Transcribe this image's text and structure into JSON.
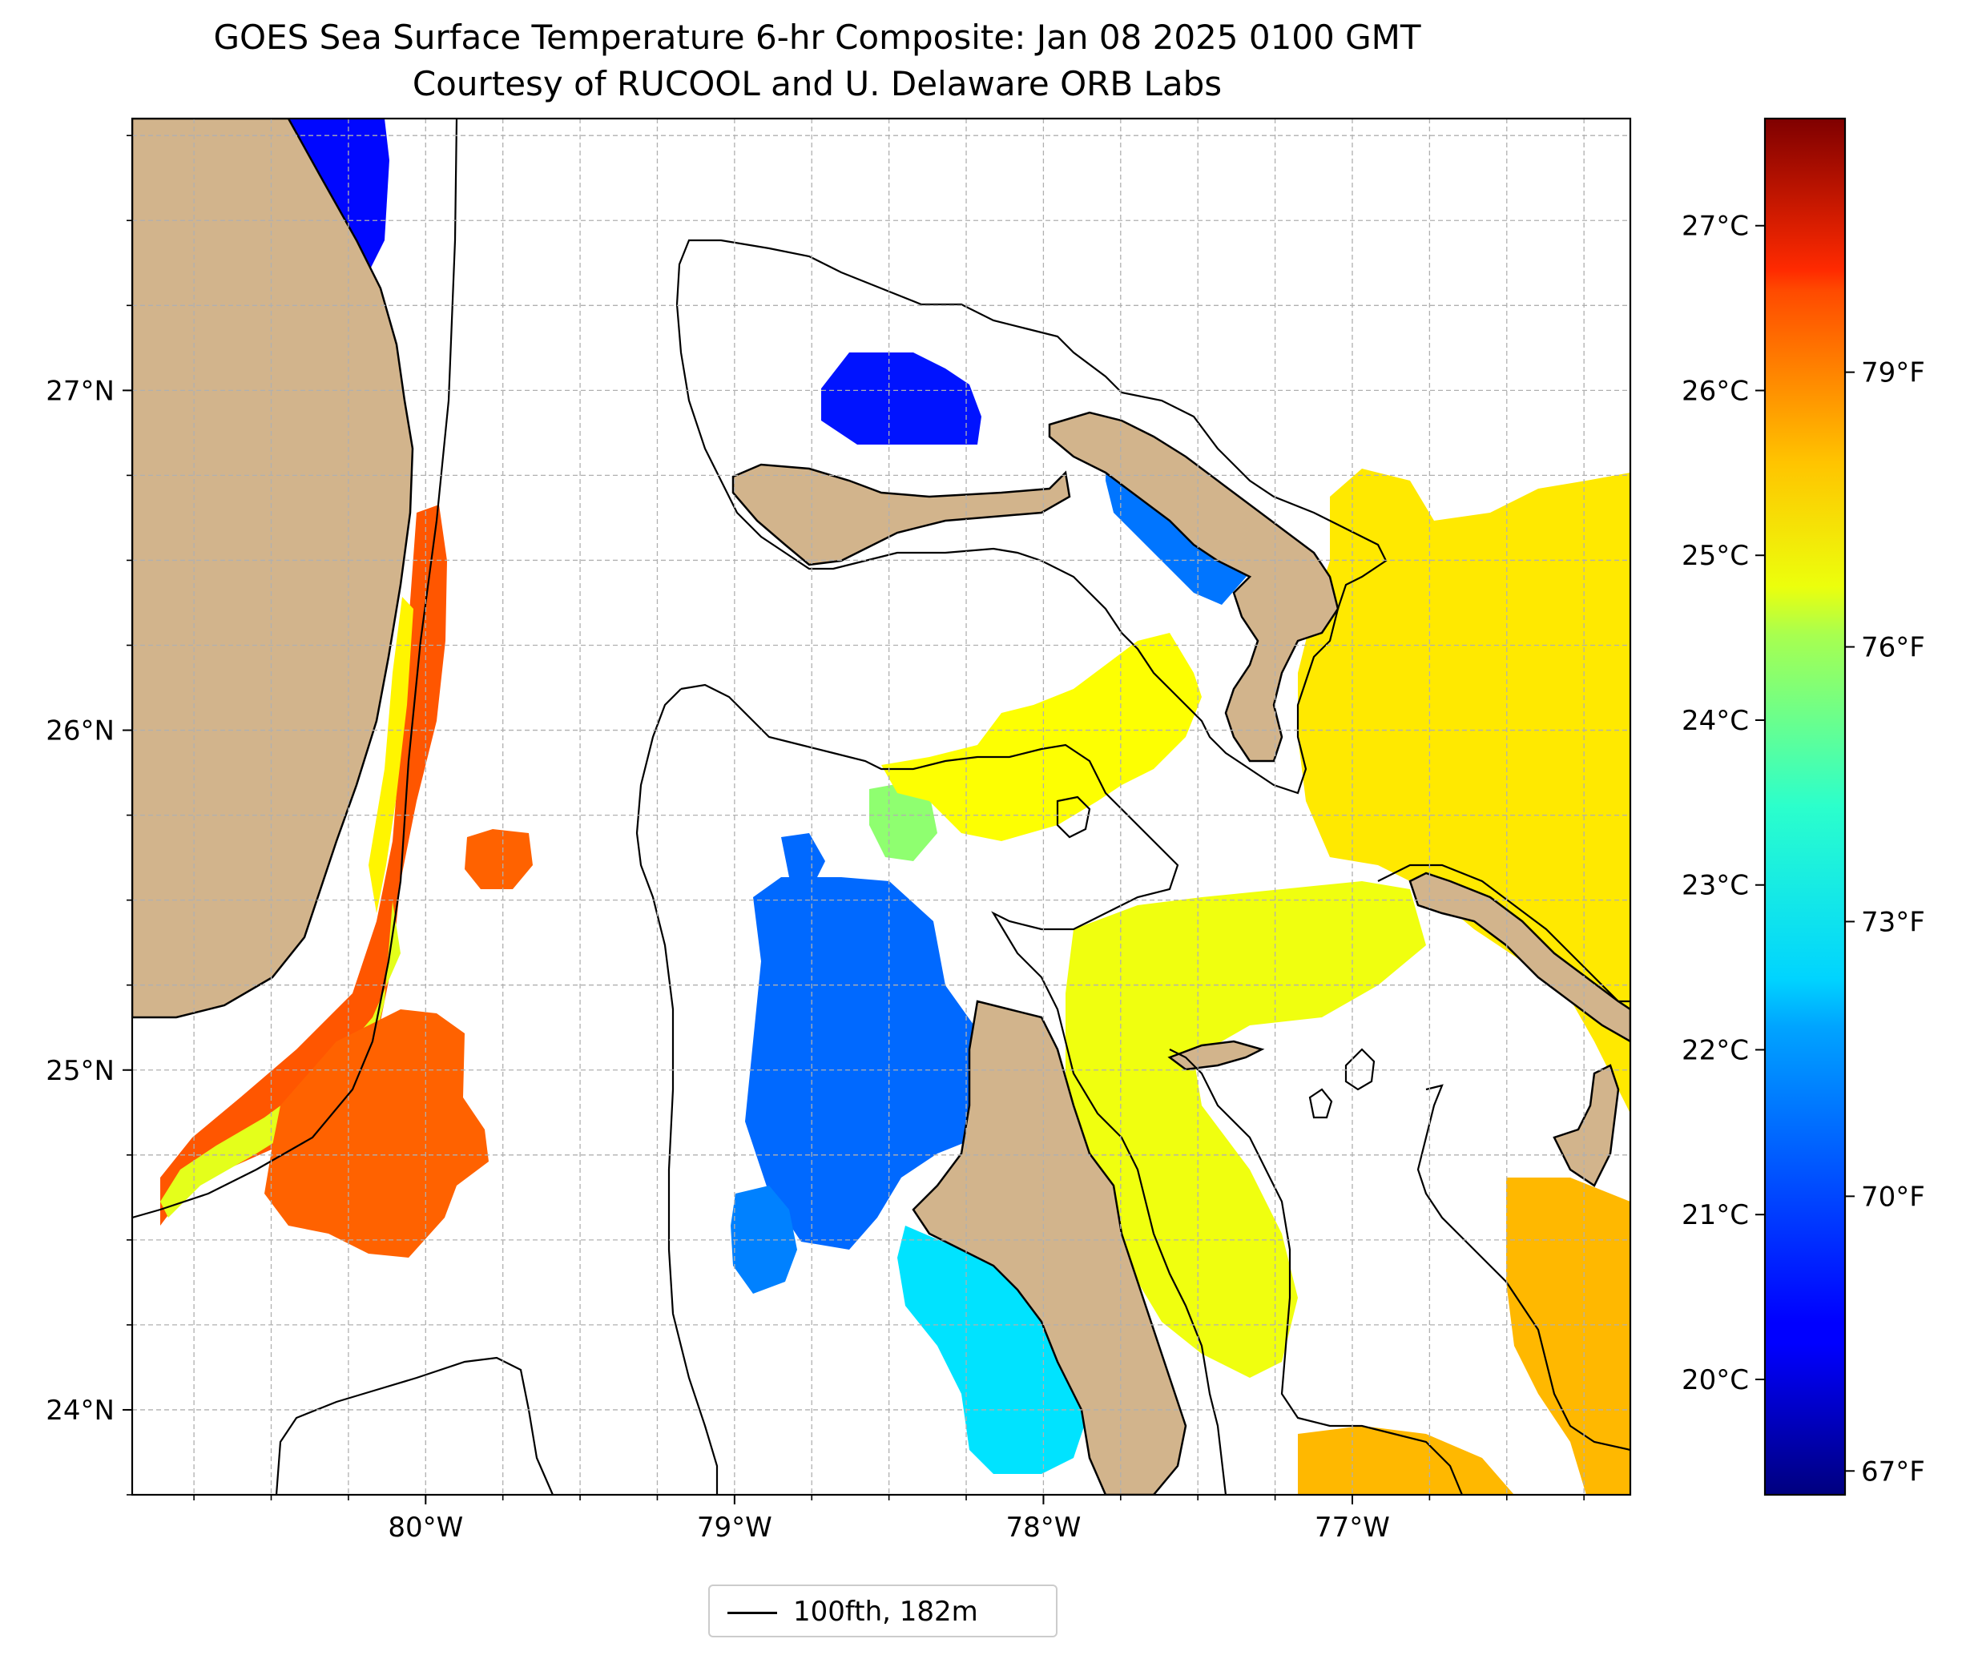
{
  "title": {
    "line1": "GOES Sea Surface Temperature 6-hr Composite: Jan 08 2025 0100 GMT",
    "line2": "Courtesy of RUCOOL and U. Delaware ORB Labs"
  },
  "map": {
    "lon_range": [
      -80.95,
      -76.1
    ],
    "lat_range": [
      23.75,
      27.8
    ],
    "lat_ticks": [
      {
        "value": 24,
        "label": "24°N"
      },
      {
        "value": 25,
        "label": "25°N"
      },
      {
        "value": 26,
        "label": "26°N"
      },
      {
        "value": 27,
        "label": "27°N"
      }
    ],
    "lon_ticks": [
      {
        "value": -80,
        "label": "80°W"
      },
      {
        "value": -79,
        "label": "79°W"
      },
      {
        "value": -78,
        "label": "78°W"
      },
      {
        "value": -77,
        "label": "77°W"
      }
    ],
    "gridlines": "dashed gray",
    "land_color": "#d2b48c",
    "contour_color": "#000000"
  },
  "colorbar": {
    "colormap": "jet",
    "range_c": [
      19.3,
      27.65
    ],
    "celsius_ticks": [
      {
        "value": 20,
        "label": "20°C"
      },
      {
        "value": 21,
        "label": "21°C"
      },
      {
        "value": 22,
        "label": "22°C"
      },
      {
        "value": 23,
        "label": "23°C"
      },
      {
        "value": 24,
        "label": "24°C"
      },
      {
        "value": 25,
        "label": "25°C"
      },
      {
        "value": 26,
        "label": "26°C"
      },
      {
        "value": 27,
        "label": "27°C"
      }
    ],
    "fahrenheit_ticks": [
      {
        "value": 67,
        "label": "67°F"
      },
      {
        "value": 70,
        "label": "70°F"
      },
      {
        "value": 73,
        "label": "73°F"
      },
      {
        "value": 76,
        "label": "76°F"
      },
      {
        "value": 79,
        "label": "79°F"
      }
    ]
  },
  "legend": {
    "label": "100fth, 182m",
    "line_color": "#000000"
  },
  "sst_patches": [
    {
      "name": "florida-inland-lake",
      "temp_c": 19.6
    },
    {
      "name": "florida-inland-lake-halo",
      "temp_c": 21.0
    },
    {
      "name": "north-coast-cold-strip",
      "temp_c": 20.4
    },
    {
      "name": "little-bahama-bank-patch",
      "temp_c": 20.5
    },
    {
      "name": "grand-bahama-east-patch",
      "temp_c": 21.3
    },
    {
      "name": "gulf-stream-north-strip",
      "temp_c": 24.6
    },
    {
      "name": "florida-current-warm",
      "temp_c": 25.9
    },
    {
      "name": "florida-current-west-edge",
      "temp_c": 24.3
    },
    {
      "name": "straits-warm-blob",
      "temp_c": 25.8
    },
    {
      "name": "great-bahama-bank-cool",
      "temp_c": 21.2
    },
    {
      "name": "andros-south-cyan",
      "temp_c": 22.2
    },
    {
      "name": "southwest-small-blue",
      "temp_c": 21.4
    },
    {
      "name": "eastern-warm-region",
      "temp_c": 24.7
    },
    {
      "name": "tongue-of-ocean-warm",
      "temp_c": 24.4
    },
    {
      "name": "south-east-orange",
      "temp_c": 25.1
    },
    {
      "name": "northwest-channel-green",
      "temp_c": 23.6
    },
    {
      "name": "northwest-channel-yellow",
      "temp_c": 24.5
    }
  ]
}
